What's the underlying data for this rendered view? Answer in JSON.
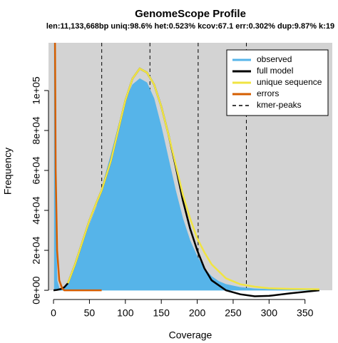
{
  "chart_data": {
    "type": "line",
    "title": "GenomeScope Profile",
    "subtitle": "len:11,133,668bp uniq:98.6%  het:0.523% kcov:67.1 err:0.302%  dup:9.87%  k:19",
    "x_label": "Coverage",
    "y_label": "Frequency",
    "xlim": [
      -7,
      388
    ],
    "xticks": [
      0,
      50,
      100,
      150,
      200,
      250,
      300,
      350
    ],
    "ylim": [
      -3900,
      123900
    ],
    "yticks": [
      {
        "value": 0,
        "label": "0e+00"
      },
      {
        "value": 20000,
        "label": "2e+04"
      },
      {
        "value": 40000,
        "label": "4e+04"
      },
      {
        "value": 60000,
        "label": "6e+04"
      },
      {
        "value": 80000,
        "label": "8e+04"
      },
      {
        "value": 100000,
        "label": "1e+05"
      }
    ],
    "legend": "top-right",
    "series": [
      {
        "name": "observed",
        "color": "#56b4e9",
        "style": "area",
        "x": [
          1,
          3,
          5,
          8,
          12,
          15,
          20,
          30,
          40,
          50,
          60,
          70,
          80,
          90,
          100,
          110,
          120,
          130,
          140,
          150,
          160,
          170,
          180,
          190,
          200,
          210,
          220,
          230,
          240,
          260,
          280,
          300,
          330,
          370
        ],
        "values": [
          130000,
          40000,
          5000,
          1000,
          500,
          800,
          3000,
          14000,
          24000,
          33000,
          42000,
          55000,
          68000,
          82000,
          95000,
          103000,
          106000,
          104000,
          96000,
          82000,
          66000,
          50000,
          36000,
          25000,
          17000,
          11000,
          7000,
          4500,
          3000,
          1500,
          800,
          500,
          300,
          200
        ]
      },
      {
        "name": "full model",
        "color": "#000000",
        "style": "line",
        "x": [
          0,
          5,
          10,
          15,
          20,
          30,
          40,
          50,
          60,
          67,
          80,
          90,
          100,
          110,
          120,
          130,
          140,
          150,
          160,
          170,
          180,
          190,
          200,
          210,
          220,
          240,
          260,
          280,
          300,
          330,
          370
        ],
        "values": [
          0,
          200,
          600,
          1500,
          3500,
          13000,
          24000,
          35000,
          44000,
          50000,
          65000,
          80000,
          95000,
          106000,
          111000,
          109000,
          103000,
          92000,
          78000,
          62000,
          45000,
          31000,
          20000,
          11000,
          5000,
          0,
          -2000,
          -3000,
          -2800,
          -1500,
          0
        ]
      },
      {
        "name": "unique sequence",
        "color": "#f0e442",
        "style": "line",
        "x": [
          20,
          30,
          40,
          50,
          60,
          67,
          80,
          90,
          100,
          110,
          120,
          130,
          140,
          150,
          160,
          170,
          180,
          190,
          200,
          210,
          220,
          240,
          260,
          280,
          300,
          330,
          370
        ],
        "values": [
          3500,
          13000,
          24000,
          35000,
          44000,
          50000,
          65000,
          80000,
          95000,
          106000,
          111000,
          109000,
          103000,
          92000,
          78000,
          63000,
          48000,
          36000,
          26000,
          19000,
          13000,
          6000,
          3000,
          1800,
          1000,
          700,
          500
        ]
      },
      {
        "name": "errors",
        "color": "#d55e00",
        "style": "line",
        "x": [
          2,
          3,
          5,
          8,
          12,
          15,
          30,
          50,
          67
        ],
        "values": [
          130000,
          60000,
          20000,
          5000,
          1000,
          0,
          0,
          0,
          0
        ]
      }
    ],
    "kmer_peaks": {
      "name": "kmer-peaks",
      "x": [
        67.1,
        134.2,
        201.3,
        268.4
      ]
    }
  }
}
